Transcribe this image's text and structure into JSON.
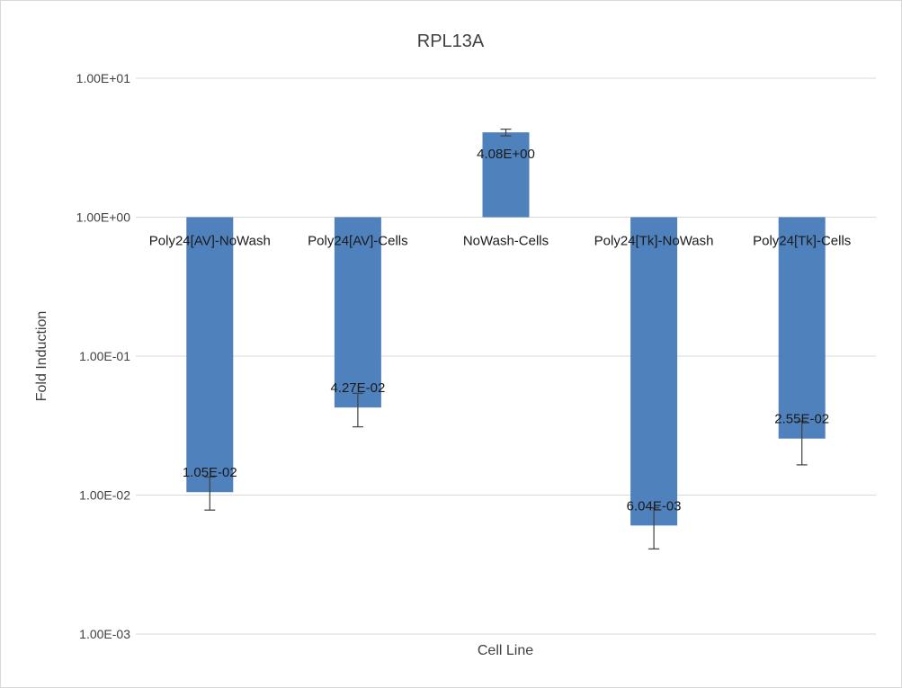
{
  "chart_data": {
    "type": "bar",
    "title": "RPL13A",
    "xlabel": "Cell Line",
    "ylabel": "Fold Induction",
    "yscale": "log",
    "ylim": [
      0.001,
      10
    ],
    "yticks": [
      {
        "value": 10,
        "label": "1.00E+01"
      },
      {
        "value": 1,
        "label": "1.00E+00"
      },
      {
        "value": 0.1,
        "label": "1.00E-01"
      },
      {
        "value": 0.01,
        "label": "1.00E-02"
      },
      {
        "value": 0.001,
        "label": "1.00E-03"
      }
    ],
    "baseline": 1,
    "grid": true,
    "legend": "none",
    "bar_color": "#4f81bd",
    "categories": [
      "Poly24[AV]-NoWash",
      "Poly24[AV]-Cells",
      "NoWash-Cells",
      "Poly24[Tk]-NoWash",
      "Poly24[Tk]-Cells"
    ],
    "values": [
      0.0105,
      0.0427,
      4.08,
      0.00604,
      0.0255
    ],
    "data_labels": [
      "1.05E-02",
      "4.27E-02",
      "4.08E+00",
      "6.04E-03",
      "2.55E-02"
    ],
    "error_bars": [
      {
        "low": 0.0078,
        "high": 0.0135
      },
      {
        "low": 0.031,
        "high": 0.054
      },
      {
        "low": 3.85,
        "high": 4.3
      },
      {
        "low": 0.0041,
        "high": 0.0081
      },
      {
        "low": 0.0165,
        "high": 0.034
      }
    ]
  }
}
